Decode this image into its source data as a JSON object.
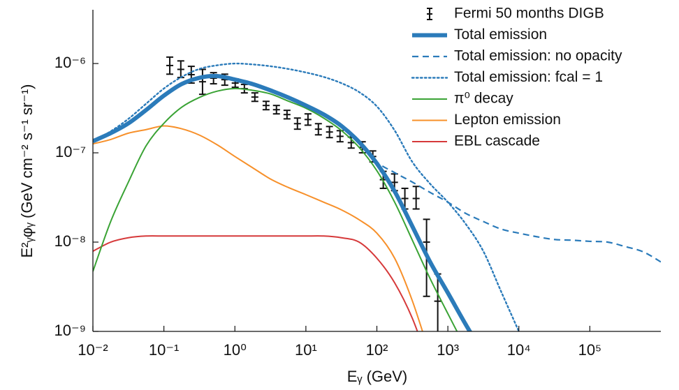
{
  "chart_data": {
    "type": "line",
    "x_label": "Eᵧ (GeV)",
    "y_label": "E²ᵧφᵧ (GeV cm⁻² s⁻¹ sr⁻¹)",
    "log_x": true,
    "log_y": true,
    "legend": "upper right",
    "xlim": [
      0.01,
      1000000
    ],
    "xticks": [
      {
        "value": 0.01,
        "label": "10⁻²"
      },
      {
        "value": 0.1,
        "label": "10⁻¹"
      },
      {
        "value": 1,
        "label": "10⁰"
      },
      {
        "value": 10,
        "label": "10¹"
      },
      {
        "value": 100,
        "label": "10²"
      },
      {
        "value": 1000,
        "label": "10³"
      },
      {
        "value": 10000,
        "label": "10⁴"
      },
      {
        "value": 100000,
        "label": "10⁵"
      }
    ],
    "ylim": [
      1e-09,
      4e-06
    ],
    "yticks": [
      {
        "value": 1e-09,
        "label": "10⁻⁹"
      },
      {
        "value": 1e-08,
        "label": "10⁻⁸"
      },
      {
        "value": 1e-07,
        "label": "10⁻⁷"
      },
      {
        "value": 1e-06,
        "label": "10⁻⁶"
      }
    ],
    "x": [
      0.01,
      0.0178,
      0.0316,
      0.0562,
      0.1,
      0.178,
      0.316,
      0.562,
      1,
      1.78,
      3.16,
      5.62,
      10,
      17.8,
      31.6,
      56.2,
      100,
      178,
      316,
      562,
      1000,
      1780,
      3160,
      5620,
      10000,
      17800,
      31600,
      56200,
      100000,
      178000,
      316000,
      562000,
      1000000
    ],
    "series": [
      {
        "name": "Fermi 50 months DIGB",
        "type": "errorbar",
        "color": "#111111",
        "x": [
          0.121,
          0.173,
          0.243,
          0.35,
          0.5,
          0.72,
          1.01,
          1.36,
          1.91,
          2.75,
          3.85,
          5.42,
          7.6,
          10.7,
          15.0,
          21.5,
          30.3,
          43.5,
          62.4,
          87.7,
          123,
          177,
          248,
          357,
          501,
          720
        ],
        "values": [
          9.5e-07,
          8.6e-07,
          7.5e-07,
          6.25e-07,
          6.86e-07,
          6.6e-07,
          6.04e-07,
          5.23e-07,
          4.21e-07,
          3.39e-07,
          3.04e-07,
          2.68e-07,
          2.12e-07,
          2.36e-07,
          1.84e-07,
          1.71e-07,
          1.53e-07,
          1.3e-07,
          1.15e-07,
          9.1e-08,
          5e-08,
          4.67e-08,
          3.08e-08,
          3.08e-08,
          1e-08,
          2.18e-09
        ],
        "upper": [
          1.18e-06,
          1.07e-06,
          9.3e-07,
          8.6e-07,
          7.9e-07,
          7.6e-07,
          6.73e-07,
          5.83e-07,
          4.69e-07,
          3.77e-07,
          3.39e-07,
          2.99e-07,
          2.45e-07,
          2.73e-07,
          2.12e-07,
          1.97e-07,
          1.77e-07,
          1.5e-07,
          1.33e-07,
          1.05e-07,
          6.2e-08,
          5.8e-08,
          4e-08,
          4.2e-08,
          1.8e-08,
          4.4e-09
        ],
        "lower": [
          7.6e-07,
          6.97e-07,
          6.04e-07,
          4.52e-07,
          5.93e-07,
          5.72e-07,
          5.42e-07,
          4.69e-07,
          3.77e-07,
          3.04e-07,
          2.73e-07,
          2.4e-07,
          1.84e-07,
          2.04e-07,
          1.59e-07,
          1.48e-07,
          1.33e-07,
          1.13e-07,
          1e-07,
          7.9e-08,
          4e-08,
          3.77e-08,
          2.35e-08,
          2.35e-08,
          2.47e-09,
          8e-10
        ]
      },
      {
        "name": "Total emission",
        "color": "#2b7bba",
        "style": "solid",
        "width": 6,
        "values": [
          1.35e-07,
          1.66e-07,
          2.14e-07,
          3.02e-07,
          4.37e-07,
          5.89e-07,
          6.92e-07,
          7.24e-07,
          6.61e-07,
          5.89e-07,
          5.01e-07,
          4.17e-07,
          3.39e-07,
          2.69e-07,
          2e-07,
          1.32e-07,
          7.6e-08,
          3.7e-08,
          1.5e-08,
          6e-09,
          2.7e-09,
          1.2e-09,
          5.6e-10,
          null,
          null,
          null,
          null,
          null,
          null,
          null,
          null,
          null,
          null
        ]
      },
      {
        "name": "Total emission: no opacity",
        "color": "#2b7bba",
        "style": "dashed",
        "width": 2.2,
        "values": [
          1.35e-07,
          1.66e-07,
          2.14e-07,
          3.02e-07,
          4.37e-07,
          5.89e-07,
          6.92e-07,
          7.24e-07,
          6.61e-07,
          5.89e-07,
          5.01e-07,
          4.17e-07,
          3.39e-07,
          2.69e-07,
          2e-07,
          1.35e-07,
          7.9e-08,
          6e-08,
          4.7e-08,
          3.6e-08,
          2.8e-08,
          2.1e-08,
          1.7e-08,
          1.4e-08,
          1.26e-08,
          1.15e-08,
          1.07e-08,
          1.05e-08,
          1.02e-08,
          1e-08,
          8.9e-09,
          7.8e-09,
          6e-09
        ]
      },
      {
        "name": "Total emission: fcal = 1",
        "color": "#2b7bba",
        "style": "dotted",
        "width": 2.4,
        "values": [
          1.35e-07,
          1.74e-07,
          2.4e-07,
          3.55e-07,
          5.25e-07,
          7.08e-07,
          8.7e-07,
          9.55e-07,
          1e-06,
          9.77e-07,
          9.33e-07,
          8.7e-07,
          7.94e-07,
          7.08e-07,
          6.03e-07,
          4.79e-07,
          3.31e-07,
          1.78e-07,
          7.9e-08,
          4.5e-08,
          2.8e-08,
          1.6e-08,
          7.9e-09,
          2.8e-09,
          1e-09,
          null,
          null,
          null,
          null,
          null,
          null,
          null,
          null
        ]
      },
      {
        "name": "π⁰ decay",
        "color": "#3aa335",
        "style": "solid",
        "width": 2,
        "values": [
          4.7e-09,
          1.7e-08,
          4.7e-08,
          1.2e-07,
          2.14e-07,
          3.24e-07,
          4.17e-07,
          4.9e-07,
          5.25e-07,
          5.01e-07,
          4.57e-07,
          3.8e-07,
          3.16e-07,
          2.45e-07,
          1.78e-07,
          1.15e-07,
          6.3e-08,
          2.8e-08,
          1.05e-08,
          3.9e-09,
          1.58e-09,
          6.5e-10,
          null,
          null,
          null,
          null,
          null,
          null,
          null,
          null,
          null,
          null,
          null
        ]
      },
      {
        "name": "Lepton emission",
        "color": "#f7902a",
        "style": "solid",
        "width": 2,
        "values": [
          1.26e-07,
          1.41e-07,
          1.66e-07,
          1.82e-07,
          2e-07,
          1.86e-07,
          1.58e-07,
          1.23e-07,
          9.1e-08,
          6.8e-08,
          5.1e-08,
          4.1e-08,
          3.4e-08,
          2.8e-08,
          2.3e-08,
          1.78e-08,
          1.26e-08,
          6.6e-09,
          2.2e-09,
          5.4e-10,
          null,
          null,
          null,
          null,
          null,
          null,
          null,
          null,
          null,
          null,
          null,
          null,
          null
        ]
      },
      {
        "name": "EBL cascade",
        "color": "#d6393a",
        "style": "solid",
        "width": 2,
        "values": [
          7.9e-09,
          1e-08,
          1.12e-08,
          1.17e-08,
          1.17e-08,
          1.17e-08,
          1.17e-08,
          1.17e-08,
          1.17e-08,
          1.17e-08,
          1.17e-08,
          1.17e-08,
          1.17e-08,
          1.17e-08,
          1.12e-08,
          1e-08,
          6.6e-09,
          3.5e-09,
          1.4e-09,
          4e-10,
          null,
          null,
          null,
          null,
          null,
          null,
          null,
          null,
          null,
          null,
          null,
          null,
          null
        ]
      }
    ]
  }
}
